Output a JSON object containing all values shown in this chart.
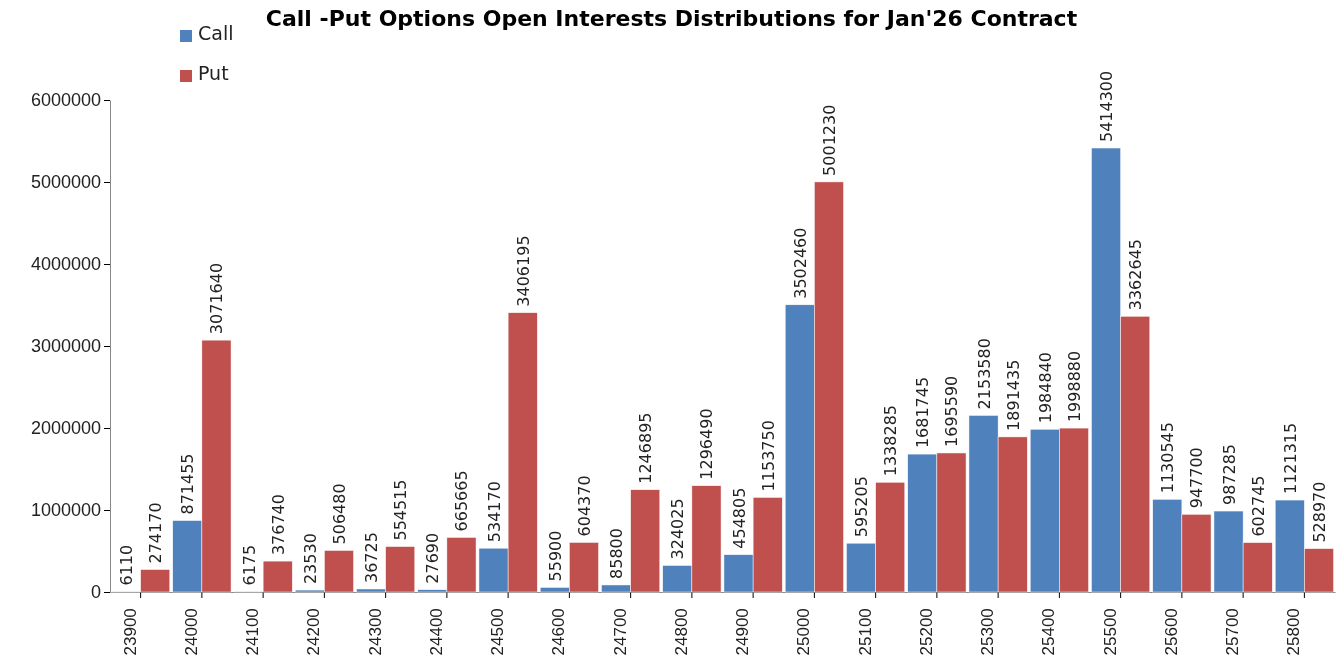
{
  "chart_data": {
    "type": "bar",
    "title": "Call -Put Options Open Interests Distributions for Jan'26 Contract",
    "categories": [
      "23900",
      "24000",
      "24100",
      "24200",
      "24300",
      "24400",
      "24500",
      "24600",
      "24700",
      "24800",
      "24900",
      "25000",
      "25100",
      "25200",
      "25300",
      "25400",
      "25500",
      "25600",
      "25700",
      "25800"
    ],
    "series": [
      {
        "name": "Call",
        "color": "#4f81bd",
        "values": [
          6110,
          871455,
          6175,
          23530,
          36725,
          27690,
          534170,
          55900,
          85800,
          324025,
          454805,
          3502460,
          595205,
          1681745,
          2153580,
          1984840,
          5414300,
          1130545,
          987285,
          1121315
        ]
      },
      {
        "name": "Put",
        "color": "#c0504d",
        "values": [
          274170,
          3071640,
          376740,
          506480,
          554515,
          665665,
          3406195,
          604370,
          1246895,
          1296490,
          1153750,
          5001230,
          1338285,
          1695590,
          1891435,
          1998880,
          3362645,
          947700,
          602745,
          528970
        ]
      }
    ],
    "ylim": [
      0,
      6000000
    ],
    "yticks": [
      0,
      1000000,
      2000000,
      3000000,
      4000000,
      5000000,
      6000000
    ],
    "data_labels": true,
    "legend": "top left",
    "grid": false
  }
}
